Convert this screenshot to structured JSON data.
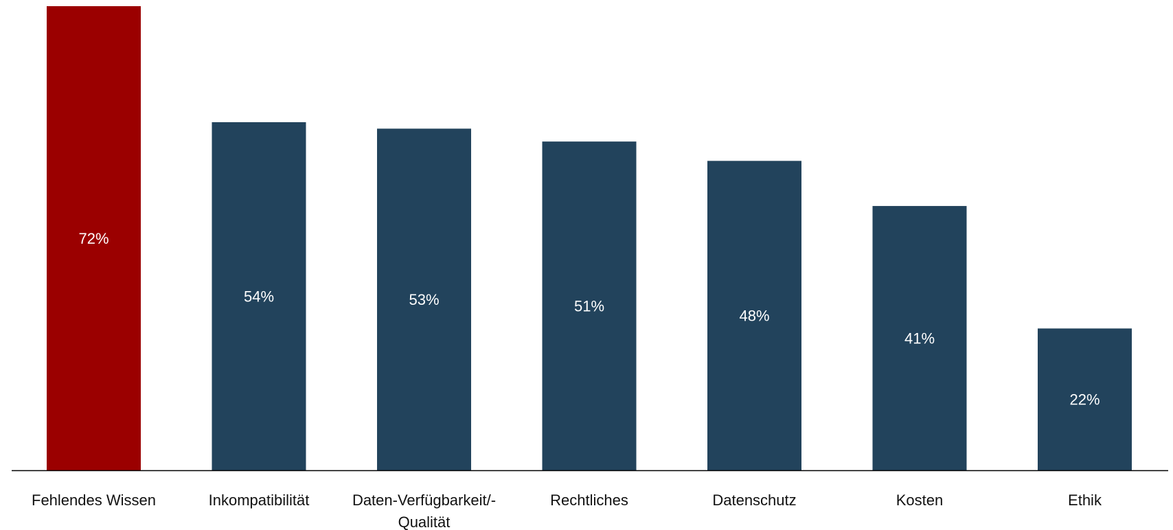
{
  "chart_data": {
    "type": "bar",
    "categories": [
      [
        "Fehlendes Wissen"
      ],
      [
        "Inkompatibilität"
      ],
      [
        "Daten-Verfügbarkeit/-",
        "Qualität"
      ],
      [
        "Rechtliches"
      ],
      [
        "Datenschutz"
      ],
      [
        "Kosten"
      ],
      [
        "Ethik"
      ]
    ],
    "values": [
      72,
      54,
      53,
      51,
      48,
      41,
      22
    ],
    "value_labels": [
      "72%",
      "54%",
      "53%",
      "51%",
      "48%",
      "41%",
      "22%"
    ],
    "unit": "%",
    "ylim": [
      0,
      72
    ],
    "grid": false,
    "legend": "none",
    "colors": {
      "highlight": "#9b0000",
      "default": "#22435c",
      "axis": "#000000"
    },
    "highlight_index": 0
  }
}
